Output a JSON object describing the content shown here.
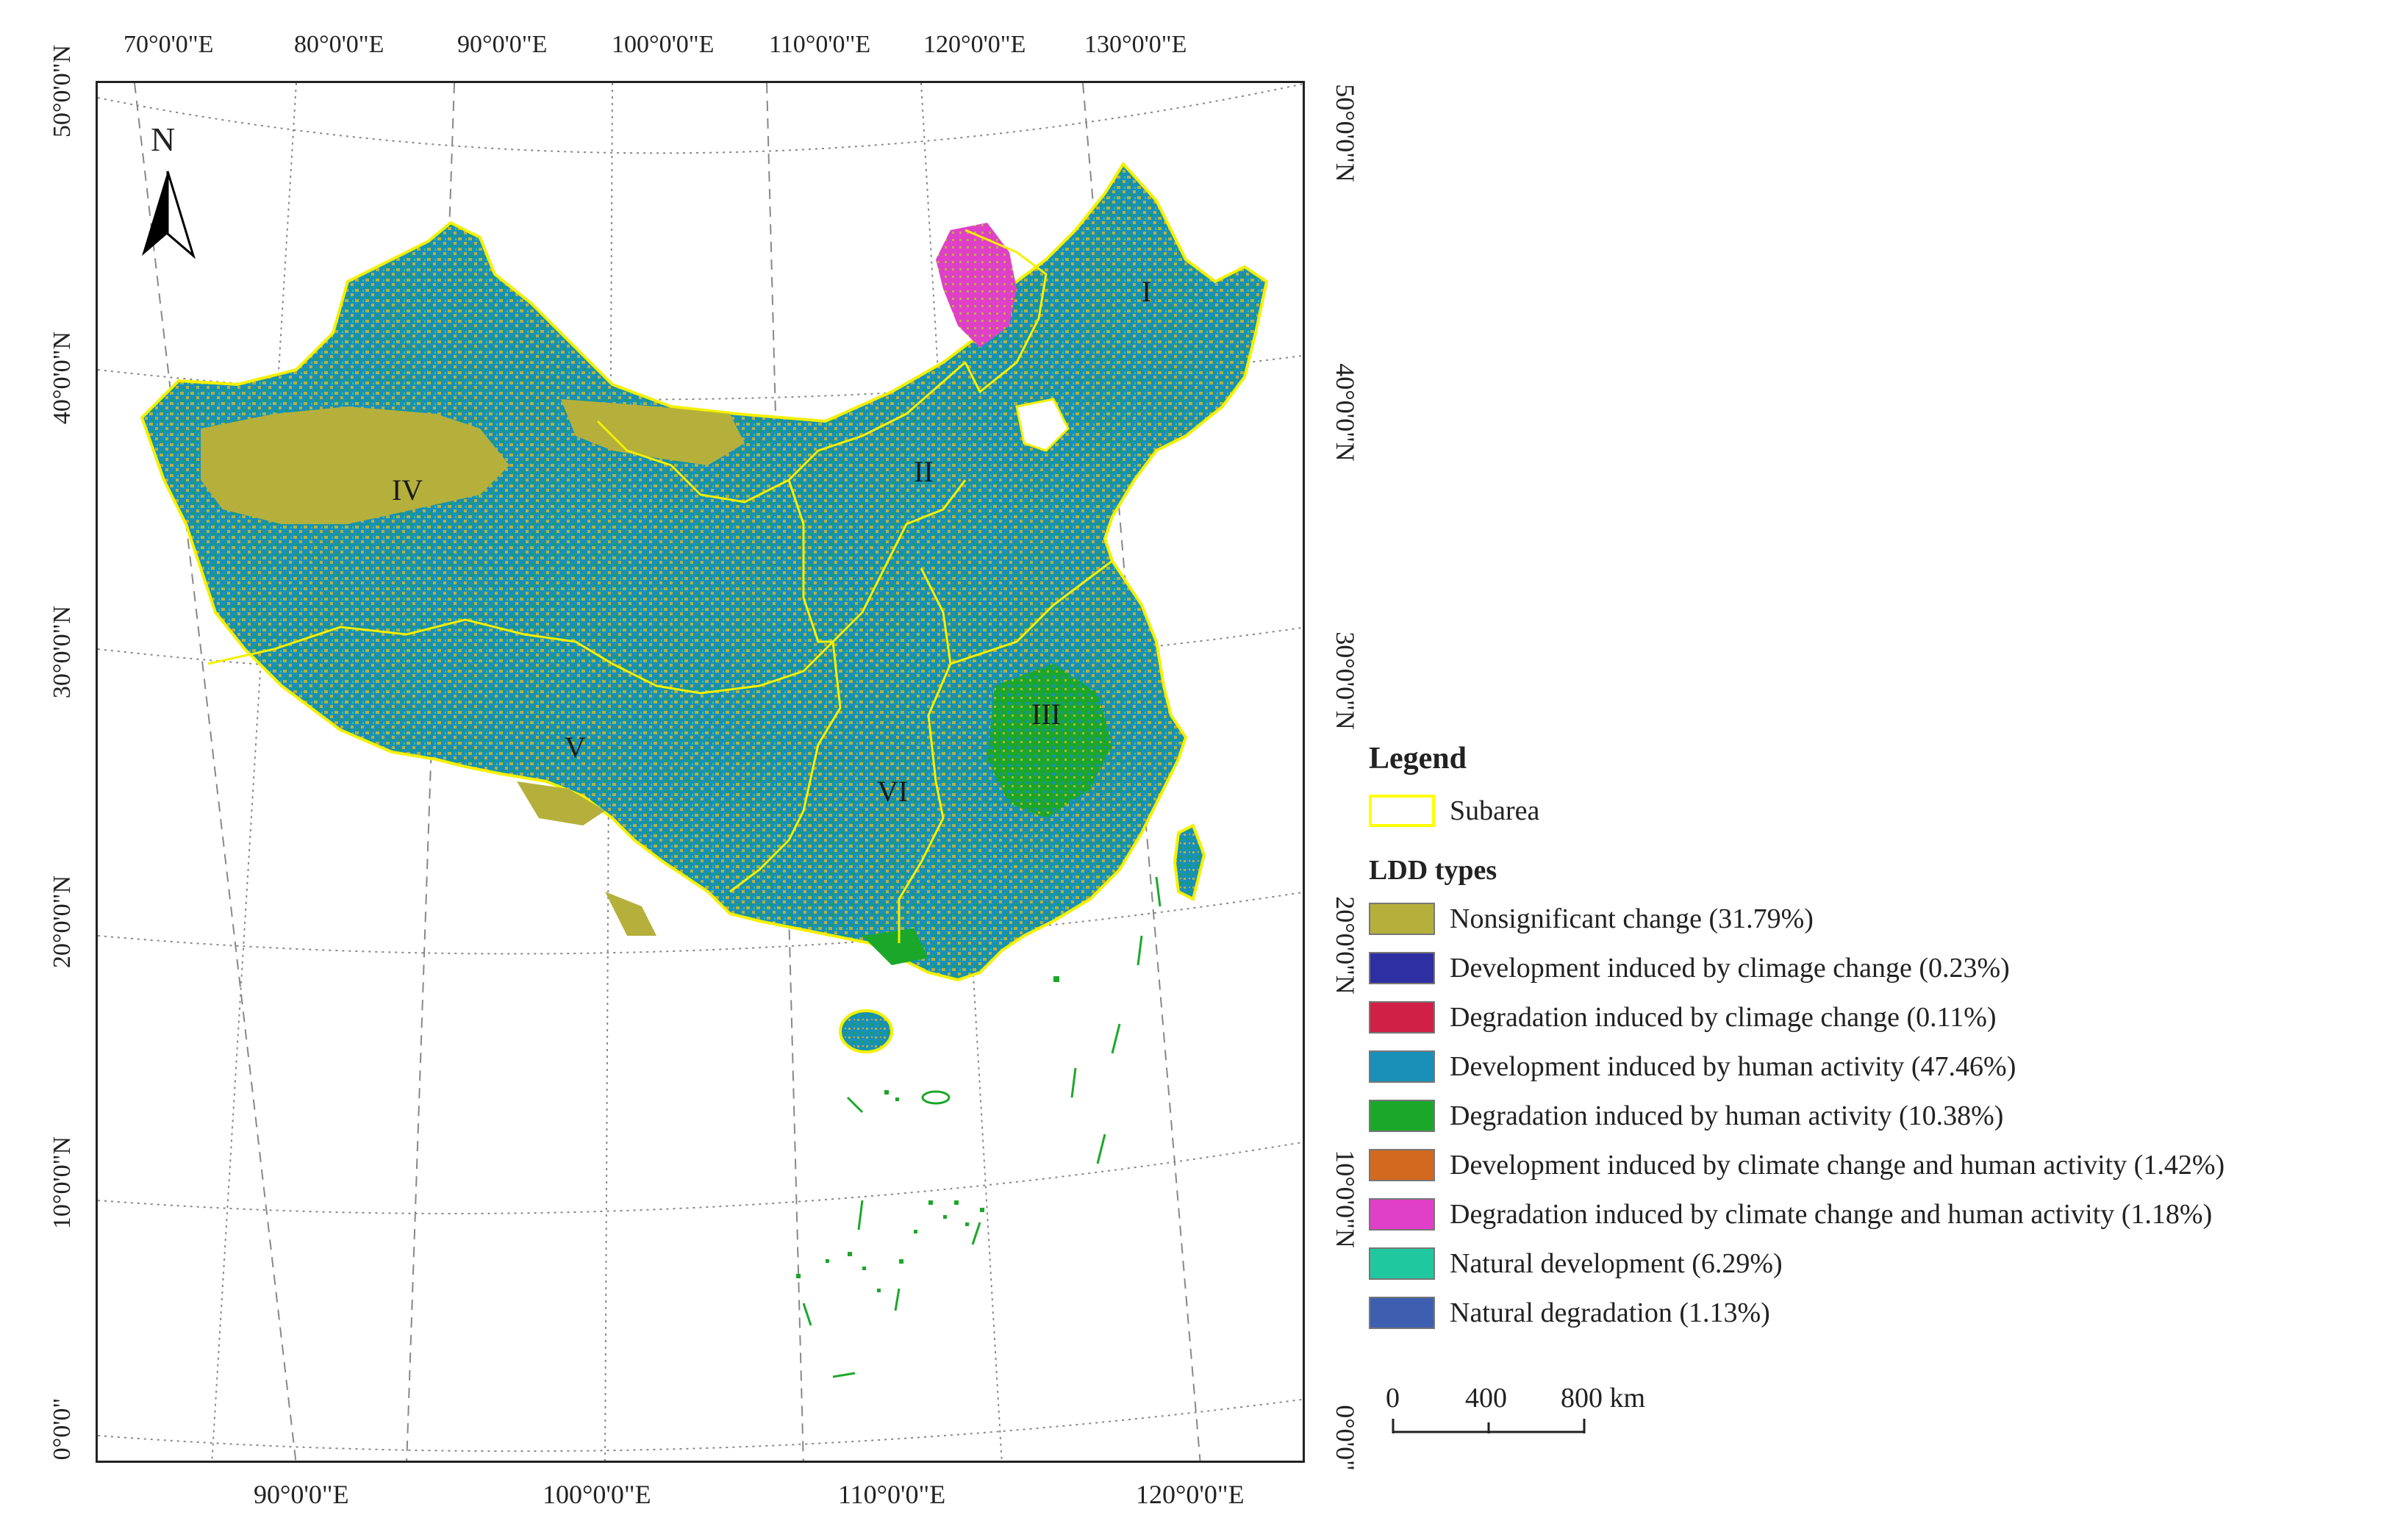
{
  "top_lon_labels": [
    "70°0'0\"E",
    "80°0'0\"E",
    "90°0'0\"E",
    "100°0'0\"E",
    "110°0'0\"E",
    "120°0'0\"E",
    "130°0'0\"E"
  ],
  "bottom_lon_labels": [
    "90°0'0\"E",
    "100°0'0\"E",
    "110°0'0\"E",
    "120°0'0\"E"
  ],
  "left_lat_labels": [
    "50°0'0\"N",
    "40°0'0\"N",
    "30°0'0\"N",
    "20°0'0\"N",
    "10°0'0\"N",
    "0°0'0\""
  ],
  "right_lat_labels": [
    "50°0'0\"N",
    "40°0'0\"N",
    "30°0'0\"N",
    "20°0'0\"N",
    "10°0'0\"N",
    "0°0'0\""
  ],
  "north_arrow_label": "N",
  "region_labels": [
    "I",
    "II",
    "III",
    "IV",
    "V",
    "VI"
  ],
  "legend": {
    "title": "Legend",
    "subarea_label": "Subarea",
    "subarea_color": "#ffff00",
    "ldd_title": "LDD types",
    "items": [
      {
        "label": "Nonsignificant change (31.79%)",
        "color": "#b5b03c"
      },
      {
        "label": "Development induced by climage change (0.23%)",
        "color": "#2e2fa0"
      },
      {
        "label": "Degradation induced by climage change (0.11%)",
        "color": "#d02046"
      },
      {
        "label": "Development induced by human activity (47.46%)",
        "color": "#1890b8"
      },
      {
        "label": "Degradation induced by human activity (10.38%)",
        "color": "#1ba82a"
      },
      {
        "label": "Development induced by climate change and human activity (1.42%)",
        "color": "#d2691e"
      },
      {
        "label": "Degradation induced by climate change and human activity (1.18%)",
        "color": "#e040c8"
      },
      {
        "label": "Natural development (6.29%)",
        "color": "#20c8a0"
      },
      {
        "label": "Natural degradation (1.13%)",
        "color": "#3e5fb0"
      }
    ]
  },
  "scale_bar": {
    "ticks": [
      "0",
      "400",
      "800 km"
    ]
  }
}
